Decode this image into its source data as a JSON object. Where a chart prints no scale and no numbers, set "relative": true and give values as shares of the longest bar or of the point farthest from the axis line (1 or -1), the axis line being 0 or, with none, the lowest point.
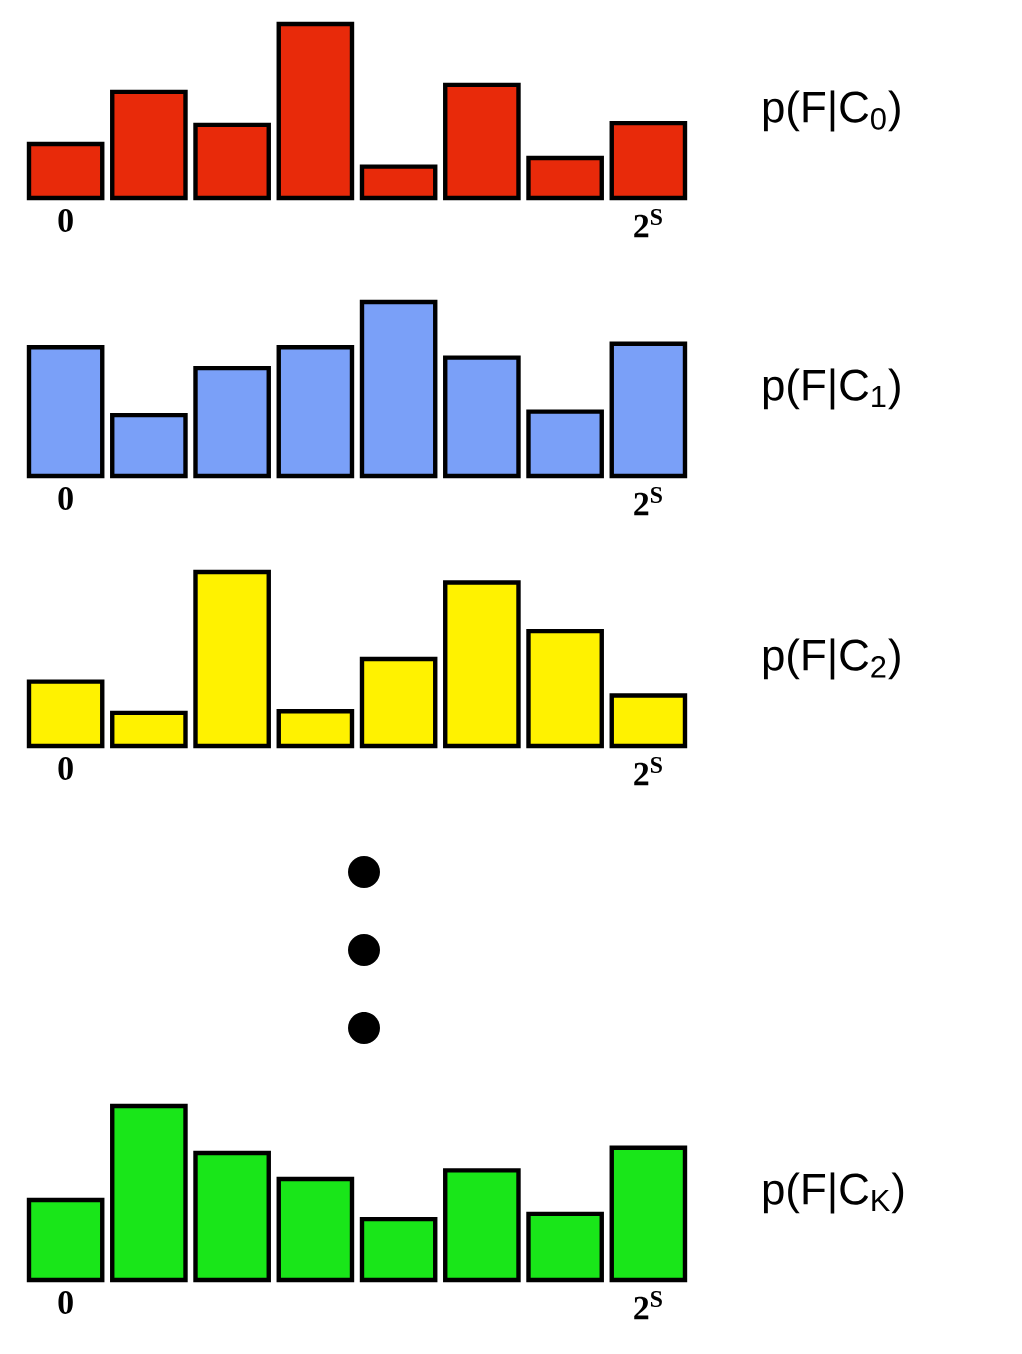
{
  "chart_data": [
    {
      "type": "bar",
      "categories": [
        "0",
        null,
        null,
        null,
        null,
        null,
        null,
        "2$^{S}$"
      ],
      "series": [
        {
          "name": "p(F|C$_{0}$)",
          "color": "#e82a0a",
          "values": [
            0.31,
            0.61,
            0.42,
            1,
            0.18,
            0.65,
            0.23,
            0.43
          ]
        }
      ],
      "relative": true,
      "tick_labels": "x"
    },
    {
      "type": "bar",
      "categories": [
        "0",
        null,
        null,
        null,
        null,
        null,
        null,
        "2$^{S}$"
      ],
      "series": [
        {
          "name": "p(F|C$_{1}$)",
          "color": "#7aa0f8",
          "values": [
            0.74,
            0.35,
            0.62,
            0.74,
            1,
            0.68,
            0.37,
            0.76
          ]
        }
      ],
      "relative": true,
      "tick_labels": "x"
    },
    {
      "type": "bar",
      "categories": [
        "0",
        null,
        null,
        null,
        null,
        null,
        null,
        "2$^{S}$"
      ],
      "series": [
        {
          "name": "p(F|C$_{2}$)",
          "color": "#fff200",
          "values": [
            0.37,
            0.19,
            1,
            0.2,
            0.5,
            0.94,
            0.66,
            0.29
          ]
        }
      ],
      "relative": true,
      "tick_labels": "x"
    },
    {
      "type": "bar",
      "categories": [
        "0",
        null,
        null,
        null,
        null,
        null,
        null,
        "2$^{S}$"
      ],
      "series": [
        {
          "name": "p(F|C$_{K}$)",
          "color": "#19e619",
          "values": [
            0.46,
            1,
            0.73,
            0.58,
            0.35,
            0.63,
            0.38,
            0.76
          ]
        }
      ],
      "relative": true,
      "tick_labels": "x"
    }
  ]
}
